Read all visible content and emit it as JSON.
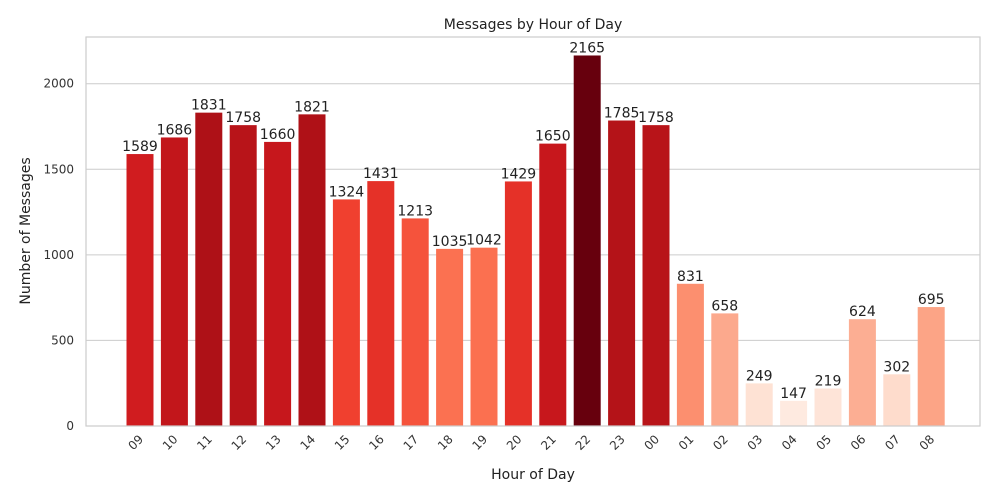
{
  "chart_data": {
    "type": "bar",
    "title": "Messages by Hour of Day",
    "xlabel": "Hour of Day",
    "ylabel": "Number of Messages",
    "categories": [
      "09",
      "10",
      "11",
      "12",
      "13",
      "14",
      "15",
      "16",
      "17",
      "18",
      "19",
      "20",
      "21",
      "22",
      "23",
      "00",
      "01",
      "02",
      "03",
      "04",
      "05",
      "06",
      "07",
      "08"
    ],
    "values": [
      1589,
      1686,
      1831,
      1758,
      1660,
      1821,
      1324,
      1431,
      1213,
      1035,
      1042,
      1429,
      1650,
      2165,
      1785,
      1758,
      831,
      658,
      249,
      147,
      219,
      624,
      302,
      695
    ],
    "yticks": [
      0,
      500,
      1000,
      1500,
      2000
    ],
    "ylim": [
      0,
      2273
    ],
    "grid": true,
    "colormap": "Reds",
    "colormap_range": [
      0,
      2165
    ]
  }
}
